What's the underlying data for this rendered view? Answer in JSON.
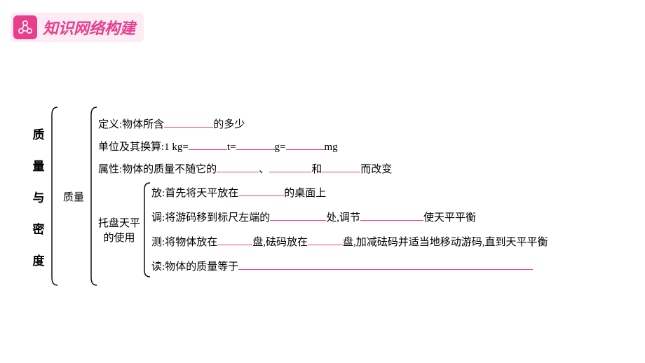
{
  "header": {
    "title": "知识网络构建"
  },
  "mainLabel": [
    "质",
    "量",
    "与",
    "密",
    "度"
  ],
  "subLabel": "质量",
  "def": "定义:物体所含",
  "defTail": "的多少",
  "units": {
    "lead": "单位及其换算:1 kg=",
    "t": "t=",
    "g": "g=",
    "mg": "mg"
  },
  "attr": {
    "lead": "属性:物体的质量不随它的",
    "sep1": "、",
    "sep2": "和",
    "tail": "而改变"
  },
  "balanceLabel": [
    "托盘天平",
    "的使用"
  ],
  "put": {
    "lead": "放:首先将天平放在",
    "tail": "的桌面上"
  },
  "adjust": {
    "lead": "调:将游码移到标尺左端的",
    "mid": "处,调节",
    "tail": "使天平平衡"
  },
  "measure": {
    "lead": "测:将物体放在",
    "mid1": "盘,砝码放在",
    "tail": "盘,加减砝码并适当地移动游码,直到天平平衡"
  },
  "read": {
    "lead": "读:物体的质量等于"
  },
  "colors": {
    "accent": "#e83e8c",
    "bg": "#ffffff"
  },
  "blanks": {
    "def": 70,
    "u1": 55,
    "u2": 55,
    "u3": 55,
    "a1": 60,
    "a2": 60,
    "a3": 55,
    "put": 65,
    "adj1": 80,
    "adj2": 90,
    "m1": 50,
    "m2": 50,
    "read": 420
  }
}
